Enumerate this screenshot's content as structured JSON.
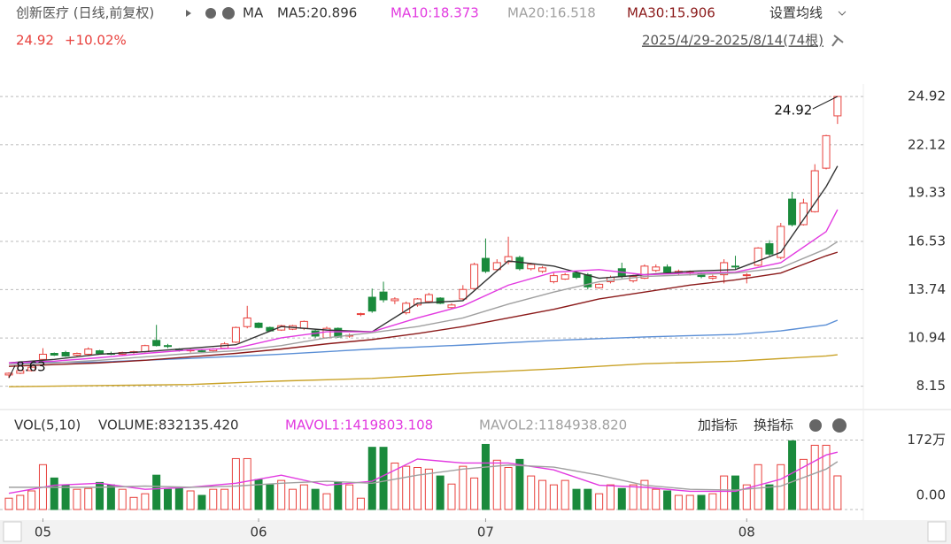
{
  "header": {
    "title": "创新医疗 (日线,前复权)",
    "indicator": "MA",
    "settings": "设置均线",
    "last_price": "24.92",
    "change": "+10.02%",
    "range": "2025/4/29-2025/8/14(74根)"
  },
  "chart_data": [
    {
      "type": "candlestick",
      "up_color": "#e8403c",
      "down_color": "#1a8a3c",
      "ohlc": [
        [
          8.8,
          8.95,
          8.63,
          8.9
        ],
        [
          8.9,
          9.1,
          8.85,
          9.05
        ],
        [
          9.05,
          9.3,
          9.0,
          9.25
        ],
        [
          9.7,
          10.35,
          9.65,
          10.0
        ],
        [
          10.05,
          10.1,
          9.9,
          9.95
        ],
        [
          10.1,
          10.2,
          9.85,
          9.9
        ],
        [
          9.95,
          10.1,
          9.9,
          10.05
        ],
        [
          10.0,
          10.4,
          9.95,
          10.3
        ],
        [
          10.2,
          10.25,
          10.0,
          10.05
        ],
        [
          10.05,
          10.15,
          9.95,
          10.0
        ],
        [
          10.0,
          10.15,
          9.95,
          10.1
        ],
        [
          10.1,
          10.2,
          10.0,
          10.15
        ],
        [
          10.15,
          10.55,
          10.1,
          10.5
        ],
        [
          10.8,
          11.7,
          10.45,
          10.5
        ],
        [
          10.5,
          10.6,
          10.35,
          10.45
        ],
        [
          10.3,
          10.35,
          10.15,
          10.25
        ],
        [
          10.2,
          10.3,
          10.1,
          10.25
        ],
        [
          10.2,
          10.3,
          10.1,
          10.15
        ],
        [
          10.2,
          10.35,
          10.15,
          10.3
        ],
        [
          10.35,
          10.7,
          10.3,
          10.6
        ],
        [
          10.7,
          11.6,
          10.65,
          11.55
        ],
        [
          11.6,
          12.8,
          11.5,
          12.1
        ],
        [
          11.8,
          11.85,
          11.5,
          11.55
        ],
        [
          11.55,
          11.6,
          11.3,
          11.35
        ],
        [
          11.4,
          11.7,
          11.35,
          11.65
        ],
        [
          11.45,
          11.7,
          11.4,
          11.65
        ],
        [
          11.5,
          11.95,
          11.4,
          11.9
        ],
        [
          11.35,
          11.45,
          10.95,
          11.05
        ],
        [
          10.95,
          11.6,
          10.9,
          11.5
        ],
        [
          11.5,
          11.55,
          10.95,
          11.0
        ],
        [
          11.05,
          11.2,
          10.95,
          11.1
        ],
        [
          12.3,
          12.4,
          12.2,
          12.35
        ],
        [
          13.3,
          13.8,
          12.4,
          12.5
        ],
        [
          13.6,
          14.2,
          13.0,
          13.15
        ],
        [
          13.1,
          13.3,
          12.9,
          13.2
        ],
        [
          12.4,
          13.05,
          12.3,
          12.95
        ],
        [
          12.85,
          13.25,
          12.75,
          13.2
        ],
        [
          13.05,
          13.55,
          12.95,
          13.45
        ],
        [
          13.25,
          13.3,
          12.9,
          12.95
        ],
        [
          12.7,
          12.95,
          12.6,
          12.85
        ],
        [
          13.2,
          14.0,
          13.15,
          13.75
        ],
        [
          13.8,
          15.3,
          13.75,
          15.2
        ],
        [
          15.55,
          16.7,
          14.7,
          14.8
        ],
        [
          14.9,
          15.5,
          14.8,
          15.3
        ],
        [
          15.35,
          16.8,
          15.2,
          15.65
        ],
        [
          15.6,
          15.7,
          14.85,
          14.95
        ],
        [
          14.95,
          15.3,
          14.85,
          15.2
        ],
        [
          14.8,
          15.1,
          14.7,
          15.0
        ],
        [
          14.2,
          14.7,
          14.1,
          14.55
        ],
        [
          14.35,
          14.7,
          14.3,
          14.6
        ],
        [
          14.7,
          14.8,
          14.35,
          14.45
        ],
        [
          14.6,
          14.7,
          13.75,
          13.9
        ],
        [
          13.85,
          14.1,
          13.8,
          14.05
        ],
        [
          14.2,
          14.55,
          14.1,
          14.45
        ],
        [
          14.95,
          15.3,
          14.4,
          14.5
        ],
        [
          14.25,
          14.6,
          14.15,
          14.5
        ],
        [
          14.4,
          15.2,
          14.35,
          15.1
        ],
        [
          14.85,
          15.2,
          14.75,
          15.05
        ],
        [
          15.05,
          15.2,
          14.65,
          14.75
        ],
        [
          14.7,
          14.9,
          14.6,
          14.8
        ],
        [
          14.7,
          14.85,
          14.55,
          14.75
        ],
        [
          14.65,
          14.75,
          14.4,
          14.5
        ],
        [
          14.4,
          14.6,
          14.3,
          14.5
        ],
        [
          14.6,
          15.5,
          14.1,
          15.3
        ],
        [
          15.1,
          15.7,
          14.9,
          15.05
        ],
        [
          14.55,
          14.7,
          14.1,
          14.6
        ],
        [
          15.15,
          16.2,
          15.1,
          16.15
        ],
        [
          16.4,
          16.6,
          15.7,
          15.8
        ],
        [
          15.6,
          17.6,
          15.5,
          17.4
        ],
        [
          18.98,
          19.4,
          17.4,
          17.5
        ],
        [
          17.5,
          19.0,
          17.45,
          18.75
        ],
        [
          18.25,
          21.0,
          18.2,
          20.62
        ],
        [
          20.77,
          22.7,
          20.7,
          22.65
        ],
        [
          23.8,
          24.92,
          23.33,
          24.92
        ]
      ],
      "ylim": [
        6.85,
        25.64
      ],
      "yticks": [
        24.92,
        22.12,
        19.33,
        16.53,
        13.74,
        10.94,
        8.15
      ],
      "grid": true,
      "xticks": [
        {
          "value": 3,
          "label": "05"
        },
        {
          "value": 22,
          "label": "06"
        },
        {
          "value": 42,
          "label": "07"
        },
        {
          "value": 65,
          "label": "08"
        }
      ],
      "series": [
        {
          "name": "MA5:20.896",
          "color": "#333333",
          "x": [
            0,
            4,
            8,
            12,
            16,
            20,
            24,
            28,
            32,
            36,
            40,
            44,
            48,
            52,
            56,
            60,
            64,
            68,
            72,
            73
          ],
          "values": [
            9.5,
            9.7,
            10.0,
            10.15,
            10.35,
            10.55,
            11.6,
            11.4,
            11.3,
            12.95,
            13.1,
            15.4,
            15.1,
            14.4,
            14.6,
            14.8,
            14.9,
            15.9,
            19.7,
            20.896
          ]
        },
        {
          "name": "MA10:18.373",
          "color": "#e23ae0",
          "x": [
            0,
            4,
            8,
            12,
            16,
            20,
            24,
            28,
            32,
            36,
            40,
            44,
            48,
            52,
            56,
            60,
            64,
            68,
            72,
            73
          ],
          "values": [
            9.5,
            9.6,
            9.8,
            10.05,
            10.25,
            10.35,
            10.95,
            11.3,
            11.3,
            12.1,
            12.8,
            14.0,
            14.75,
            14.9,
            14.6,
            14.7,
            14.75,
            15.3,
            17.1,
            18.373
          ]
        },
        {
          "name": "MA20:16.518",
          "color": "#a0a0a0",
          "x": [
            0,
            4,
            8,
            12,
            16,
            20,
            24,
            28,
            32,
            36,
            40,
            44,
            48,
            52,
            56,
            60,
            64,
            68,
            72,
            73
          ],
          "values": [
            9.4,
            9.5,
            9.65,
            9.85,
            10.05,
            10.2,
            10.5,
            10.95,
            11.25,
            11.6,
            12.1,
            12.9,
            13.6,
            14.2,
            14.5,
            14.6,
            14.7,
            15.0,
            16.1,
            16.518
          ]
        },
        {
          "name": "MA30:15.906",
          "color": "#8b1a1a",
          "x": [
            0,
            4,
            8,
            12,
            16,
            20,
            24,
            28,
            32,
            36,
            40,
            44,
            48,
            52,
            56,
            60,
            64,
            68,
            72,
            73
          ],
          "values": [
            9.3,
            9.4,
            9.5,
            9.65,
            9.85,
            10.05,
            10.3,
            10.6,
            10.85,
            11.2,
            11.6,
            12.1,
            12.6,
            13.2,
            13.6,
            14.0,
            14.3,
            14.7,
            15.7,
            15.906
          ]
        }
      ],
      "extra_lines": [
        {
          "color": "#5b8fd6",
          "x": [
            0,
            8,
            16,
            24,
            32,
            40,
            48,
            56,
            64,
            68,
            72,
            73
          ],
          "values": [
            9.5,
            9.55,
            9.76,
            10.0,
            10.3,
            10.53,
            10.8,
            11.0,
            11.15,
            11.35,
            11.7,
            11.97
          ]
        },
        {
          "color": "#c9a227",
          "x": [
            0,
            16,
            22,
            24,
            32,
            40,
            48,
            56,
            64,
            72,
            73
          ],
          "values": [
            8.12,
            8.25,
            8.4,
            8.45,
            8.6,
            8.9,
            9.15,
            9.45,
            9.6,
            9.9,
            9.97
          ]
        }
      ],
      "annotations": [
        {
          "label": "24.92",
          "index": 73,
          "value": 24.92
        },
        {
          "label": "8.63",
          "index": 0,
          "value": 8.63
        }
      ]
    },
    {
      "type": "bar",
      "title": "VOL(5,10)",
      "subtitle": "VOLUME:832135.420",
      "actions": [
        "加指标",
        "换指标"
      ],
      "values": [
        28,
        35,
        46,
        111,
        78,
        61,
        50,
        52,
        67,
        61,
        50,
        30,
        39,
        85,
        50,
        52,
        46,
        35,
        50,
        50,
        126,
        126,
        74,
        61,
        72,
        50,
        61,
        50,
        39,
        67,
        61,
        28,
        154,
        154,
        115,
        107,
        104,
        100,
        83,
        63,
        107,
        78,
        161,
        122,
        104,
        124,
        83,
        72,
        61,
        72,
        50,
        50,
        39,
        61,
        52,
        61,
        72,
        50,
        46,
        35,
        35,
        35,
        39,
        83,
        83,
        61,
        111,
        61,
        111,
        170,
        124,
        159,
        159,
        83.21
      ],
      "ylim": [
        0,
        188.3
      ],
      "yticks": [
        {
          "value": 172,
          "label": "172万"
        },
        {
          "value": 0,
          "label": "0.00"
        }
      ],
      "series": [
        {
          "name": "MAVOL1:1419803.108",
          "color": "#e23ae0",
          "x": [
            0,
            4,
            8,
            12,
            16,
            20,
            24,
            28,
            32,
            36,
            40,
            44,
            48,
            52,
            56,
            60,
            64,
            68,
            72,
            73
          ],
          "values": [
            40,
            60,
            65,
            50,
            55,
            65,
            85,
            60,
            70,
            125,
            115,
            115,
            98,
            60,
            55,
            45,
            45,
            75,
            135,
            141.98
          ]
        },
        {
          "name": "MAVOL2:1184938.820",
          "color": "#a0a0a0",
          "x": [
            0,
            4,
            8,
            12,
            16,
            20,
            24,
            28,
            32,
            36,
            40,
            44,
            48,
            52,
            56,
            60,
            64,
            68,
            72,
            73
          ],
          "values": [
            55,
            55,
            55,
            58,
            55,
            58,
            65,
            70,
            65,
            85,
            100,
            110,
            105,
            85,
            60,
            50,
            48,
            58,
            100,
            118.49
          ]
        }
      ]
    }
  ]
}
